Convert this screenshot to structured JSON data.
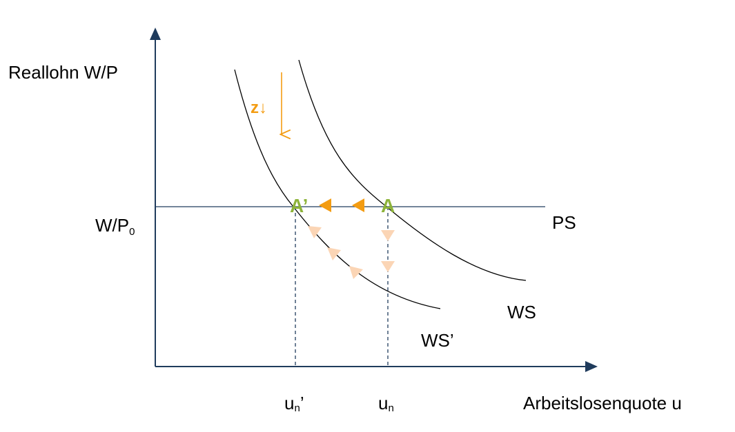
{
  "axes": {
    "y_label": "Reallohn W/P",
    "x_label": "Arbeitslosenquote u"
  },
  "labels": {
    "wp0": {
      "main": "W/P",
      "sub": "0"
    },
    "ps": "PS",
    "ws": "WS",
    "ws_prime": "WS’",
    "z": "z↓",
    "a_prime": "A’",
    "a": "A",
    "un_prime": {
      "main": "u",
      "sub": "n",
      "suffix": "’"
    },
    "un": {
      "main": "u",
      "sub": "n"
    }
  }
}
